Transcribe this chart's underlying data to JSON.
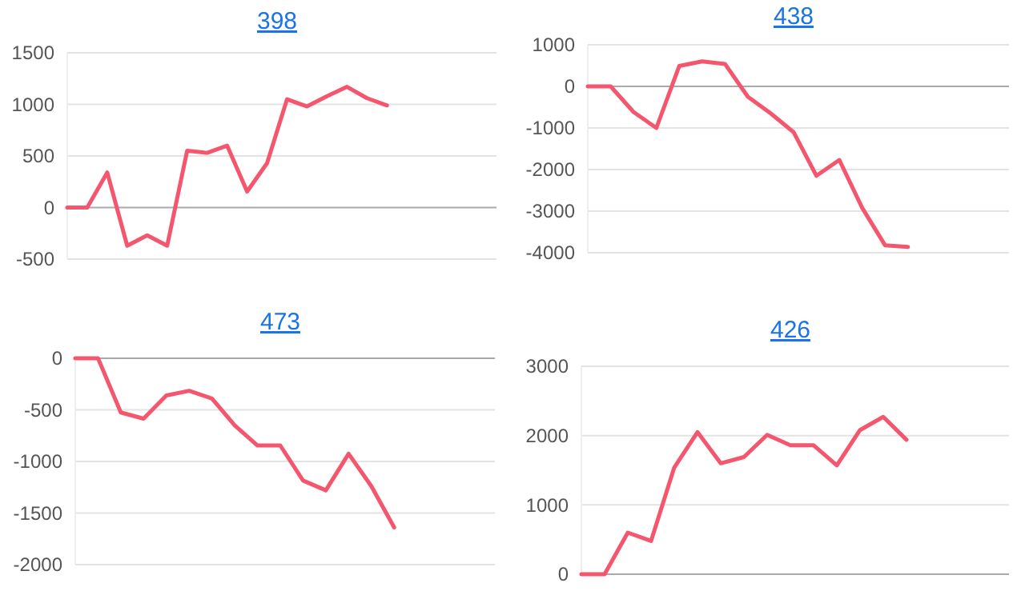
{
  "chart_data": [
    {
      "type": "line",
      "title": "398",
      "categories": [
        null,
        null,
        null,
        null,
        null,
        null,
        null,
        null,
        null,
        null,
        null,
        null,
        null,
        null,
        null,
        null,
        null,
        null,
        null,
        null,
        null,
        null
      ],
      "series": [
        {
          "color": "#f4566e",
          "values": [
            0,
            0,
            340,
            -370,
            -270,
            -370,
            550,
            530,
            600,
            155,
            430,
            1050,
            980,
            1080,
            1170,
            1060,
            990,
            null,
            null,
            null,
            null,
            null
          ]
        }
      ],
      "ylim": [
        -500,
        1500
      ],
      "yticks": [
        -500,
        0,
        500,
        1000,
        1500
      ],
      "grid": "y",
      "tick_labels": "y",
      "marker": "none"
    },
    {
      "type": "line",
      "title": "438",
      "categories": [
        null,
        null,
        null,
        null,
        null,
        null,
        null,
        null,
        null,
        null,
        null,
        null,
        null,
        null,
        null,
        null,
        null,
        null,
        null
      ],
      "series": [
        {
          "color": "#f4566e",
          "values": [
            0,
            0,
            -615,
            -1000,
            490,
            600,
            540,
            -250,
            -650,
            -1100,
            -2150,
            -1770,
            -2920,
            -3820,
            -3860,
            null,
            null,
            null,
            null
          ]
        }
      ],
      "ylim": [
        -4000,
        1000
      ],
      "yticks": [
        -4000,
        -3000,
        -2000,
        -1000,
        0,
        1000
      ],
      "grid": "y",
      "tick_labels": "y",
      "marker": "none"
    },
    {
      "type": "line",
      "title": "473",
      "categories": [
        null,
        null,
        null,
        null,
        null,
        null,
        null,
        null,
        null,
        null,
        null,
        null,
        null,
        null,
        null,
        null,
        null,
        null,
        null
      ],
      "series": [
        {
          "color": "#f4566e",
          "values": [
            0,
            0,
            -525,
            -585,
            -360,
            -315,
            -390,
            -650,
            -845,
            -845,
            -1185,
            -1280,
            -925,
            -1240,
            -1640,
            null,
            null,
            null,
            null
          ]
        }
      ],
      "ylim": [
        -2000,
        0
      ],
      "yticks": [
        -2000,
        -1500,
        -1000,
        -500,
        0
      ],
      "grid": "y",
      "tick_labels": "y",
      "marker": "none"
    },
    {
      "type": "line",
      "title": "426",
      "categories": [
        null,
        null,
        null,
        null,
        null,
        null,
        null,
        null,
        null,
        null,
        null,
        null,
        null,
        null,
        null,
        null,
        null,
        null,
        null
      ],
      "series": [
        {
          "color": "#f4566e",
          "values": [
            0,
            0,
            600,
            480,
            1540,
            2050,
            1600,
            1690,
            2010,
            1860,
            1860,
            1570,
            2080,
            2270,
            1940,
            null,
            null,
            null,
            null
          ]
        }
      ],
      "ylim": [
        0,
        3000
      ],
      "yticks": [
        0,
        1000,
        2000,
        3000
      ],
      "grid": "y",
      "tick_labels": "y",
      "marker": "none"
    }
  ]
}
